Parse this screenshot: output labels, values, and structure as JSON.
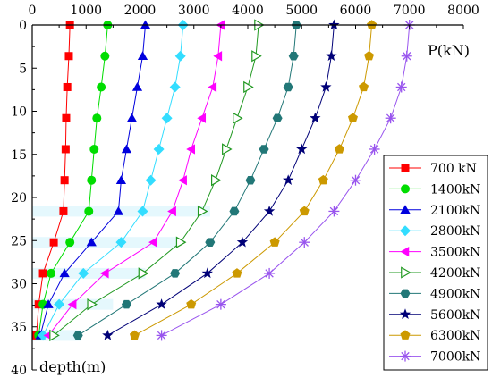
{
  "chart_data": {
    "type": "line",
    "x_axis_label": "P(kN)",
    "y_axis_label": "depth(m)",
    "x_axis_position": "top",
    "y_axis_inverted": true,
    "xlim": [
      0,
      8000
    ],
    "ylim": [
      0,
      40
    ],
    "x_ticks": [
      0,
      1000,
      2000,
      3000,
      4000,
      5000,
      6000,
      7000,
      8000
    ],
    "y_ticks": [
      0,
      5,
      10,
      15,
      20,
      25,
      30,
      35,
      40
    ],
    "grid": false,
    "legend_position": "bottom-right",
    "series": [
      {
        "name": "700 kN",
        "color": "#ff0000",
        "marker": "square",
        "points": [
          [
            700,
            0
          ],
          [
            680,
            3.6
          ],
          [
            650,
            7.2
          ],
          [
            630,
            10.8
          ],
          [
            620,
            14.4
          ],
          [
            600,
            18
          ],
          [
            580,
            21.6
          ],
          [
            400,
            25.2
          ],
          [
            200,
            28.8
          ],
          [
            120,
            32.4
          ],
          [
            80,
            36
          ]
        ]
      },
      {
        "name": "1400kN",
        "color": "#00dd00",
        "marker": "circle",
        "points": [
          [
            1400,
            0
          ],
          [
            1350,
            3.6
          ],
          [
            1280,
            7.2
          ],
          [
            1200,
            10.8
          ],
          [
            1150,
            14.4
          ],
          [
            1100,
            18
          ],
          [
            1050,
            21.6
          ],
          [
            700,
            25.2
          ],
          [
            350,
            28.8
          ],
          [
            200,
            32.4
          ],
          [
            120,
            36
          ]
        ]
      },
      {
        "name": "2100kN",
        "color": "#0000dd",
        "marker": "triangle-up",
        "points": [
          [
            2100,
            0
          ],
          [
            2050,
            3.6
          ],
          [
            1950,
            7.2
          ],
          [
            1850,
            10.8
          ],
          [
            1750,
            14.4
          ],
          [
            1650,
            18
          ],
          [
            1600,
            21.6
          ],
          [
            1100,
            25.2
          ],
          [
            600,
            28.8
          ],
          [
            300,
            32.4
          ],
          [
            150,
            36
          ]
        ]
      },
      {
        "name": "2800kN",
        "color": "#33ddff",
        "marker": "diamond",
        "points": [
          [
            2800,
            0
          ],
          [
            2750,
            3.6
          ],
          [
            2650,
            7.2
          ],
          [
            2500,
            10.8
          ],
          [
            2350,
            14.4
          ],
          [
            2200,
            18
          ],
          [
            2050,
            21.6
          ],
          [
            1650,
            25.2
          ],
          [
            950,
            28.8
          ],
          [
            500,
            32.4
          ],
          [
            200,
            36
          ]
        ]
      },
      {
        "name": "3500kN",
        "color": "#ff00ff",
        "marker": "triangle-left",
        "points": [
          [
            3500,
            0
          ],
          [
            3450,
            3.6
          ],
          [
            3350,
            7.2
          ],
          [
            3150,
            10.8
          ],
          [
            2950,
            14.4
          ],
          [
            2800,
            18
          ],
          [
            2600,
            21.6
          ],
          [
            2250,
            25.2
          ],
          [
            1350,
            28.8
          ],
          [
            750,
            32.4
          ],
          [
            300,
            36
          ]
        ]
      },
      {
        "name": "4200kN",
        "color": "#229922",
        "marker": "triangle-right-open",
        "points": [
          [
            4200,
            0
          ],
          [
            4150,
            3.6
          ],
          [
            4000,
            7.2
          ],
          [
            3800,
            10.8
          ],
          [
            3600,
            14.4
          ],
          [
            3400,
            18
          ],
          [
            3150,
            21.6
          ],
          [
            2750,
            25.2
          ],
          [
            2050,
            28.8
          ],
          [
            1100,
            32.4
          ],
          [
            400,
            36
          ]
        ]
      },
      {
        "name": "4900kN",
        "color": "#227777",
        "marker": "hexagon",
        "points": [
          [
            4900,
            0
          ],
          [
            4850,
            3.6
          ],
          [
            4750,
            7.2
          ],
          [
            4550,
            10.8
          ],
          [
            4300,
            14.4
          ],
          [
            4050,
            18
          ],
          [
            3750,
            21.6
          ],
          [
            3300,
            25.2
          ],
          [
            2650,
            28.8
          ],
          [
            1750,
            32.4
          ],
          [
            850,
            36
          ]
        ]
      },
      {
        "name": "5600kN",
        "color": "#000077",
        "marker": "star",
        "points": [
          [
            5600,
            0
          ],
          [
            5550,
            3.6
          ],
          [
            5450,
            7.2
          ],
          [
            5250,
            10.8
          ],
          [
            5000,
            14.4
          ],
          [
            4750,
            18
          ],
          [
            4400,
            21.6
          ],
          [
            3900,
            25.2
          ],
          [
            3250,
            28.8
          ],
          [
            2400,
            32.4
          ],
          [
            1400,
            36
          ]
        ]
      },
      {
        "name": "6300kN",
        "color": "#cc9900",
        "marker": "pentagon",
        "points": [
          [
            6300,
            0
          ],
          [
            6250,
            3.6
          ],
          [
            6150,
            7.2
          ],
          [
            5950,
            10.8
          ],
          [
            5700,
            14.4
          ],
          [
            5400,
            18
          ],
          [
            5050,
            21.6
          ],
          [
            4500,
            25.2
          ],
          [
            3800,
            28.8
          ],
          [
            2950,
            32.4
          ],
          [
            1900,
            36
          ]
        ]
      },
      {
        "name": "7000kN",
        "color": "#9955ee",
        "marker": "asterisk",
        "points": [
          [
            7000,
            0
          ],
          [
            6950,
            3.6
          ],
          [
            6850,
            7.2
          ],
          [
            6650,
            10.8
          ],
          [
            6350,
            14.4
          ],
          [
            6000,
            18
          ],
          [
            5600,
            21.6
          ],
          [
            5050,
            25.2
          ],
          [
            4400,
            28.8
          ],
          [
            3500,
            32.4
          ],
          [
            2400,
            36
          ]
        ]
      }
    ]
  }
}
